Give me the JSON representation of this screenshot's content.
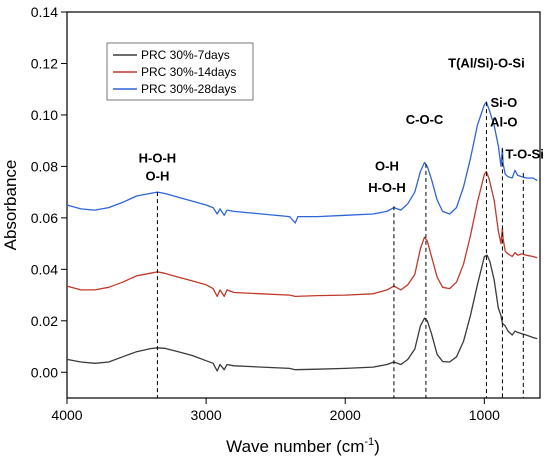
{
  "chart_data": {
    "type": "line",
    "xlabel_main": "Wave number (cm",
    "xlabel_sup": "-1",
    "xlabel_end": ")",
    "ylabel": "Absorbance",
    "xlim": [
      4000,
      600
    ],
    "ylim": [
      -0.01,
      0.14
    ],
    "x_reversed": true,
    "x_ticks": [
      4000,
      3000,
      2000,
      1000
    ],
    "y_ticks": [
      0.0,
      0.02,
      0.04,
      0.06,
      0.08,
      0.1,
      0.12,
      0.14
    ],
    "y_tick_labels": [
      "0.00",
      "0.02",
      "0.04",
      "0.06",
      "0.08",
      "0.10",
      "0.12",
      "0.14"
    ],
    "grid": false,
    "legend_position": "top-left",
    "series": [
      {
        "name": "PRC 30%-7days",
        "color": "#3a3a3a",
        "points": [
          [
            4000,
            0.005
          ],
          [
            3900,
            0.004
          ],
          [
            3800,
            0.0035
          ],
          [
            3700,
            0.004
          ],
          [
            3600,
            0.006
          ],
          [
            3500,
            0.008
          ],
          [
            3400,
            0.0092
          ],
          [
            3350,
            0.0095
          ],
          [
            3300,
            0.0093
          ],
          [
            3200,
            0.008
          ],
          [
            3100,
            0.0065
          ],
          [
            3000,
            0.0045
          ],
          [
            2950,
            0.0035
          ],
          [
            2920,
            0.0005
          ],
          [
            2900,
            0.003
          ],
          [
            2870,
            0.001
          ],
          [
            2850,
            0.003
          ],
          [
            2800,
            0.0025
          ],
          [
            2600,
            0.002
          ],
          [
            2400,
            0.0015
          ],
          [
            2360,
            0.001
          ],
          [
            2200,
            0.0012
          ],
          [
            2000,
            0.0015
          ],
          [
            1800,
            0.002
          ],
          [
            1700,
            0.003
          ],
          [
            1650,
            0.004
          ],
          [
            1600,
            0.003
          ],
          [
            1550,
            0.005
          ],
          [
            1500,
            0.009
          ],
          [
            1460,
            0.018
          ],
          [
            1430,
            0.021
          ],
          [
            1410,
            0.02
          ],
          [
            1380,
            0.015
          ],
          [
            1340,
            0.007
          ],
          [
            1300,
            0.0042
          ],
          [
            1250,
            0.004
          ],
          [
            1200,
            0.006
          ],
          [
            1150,
            0.012
          ],
          [
            1100,
            0.022
          ],
          [
            1050,
            0.034
          ],
          [
            1000,
            0.045
          ],
          [
            980,
            0.0455
          ],
          [
            960,
            0.043
          ],
          [
            930,
            0.036
          ],
          [
            900,
            0.025
          ],
          [
            880,
            0.022
          ],
          [
            870,
            0.019
          ],
          [
            850,
            0.018
          ],
          [
            830,
            0.016
          ],
          [
            800,
            0.0145
          ],
          [
            780,
            0.016
          ],
          [
            760,
            0.0155
          ],
          [
            730,
            0.015
          ],
          [
            700,
            0.0145
          ],
          [
            650,
            0.0135
          ],
          [
            620,
            0.013
          ]
        ]
      },
      {
        "name": "PRC 30%-14days",
        "color": "#c0392b",
        "points": [
          [
            4000,
            0.0335
          ],
          [
            3900,
            0.032
          ],
          [
            3800,
            0.032
          ],
          [
            3700,
            0.033
          ],
          [
            3600,
            0.035
          ],
          [
            3500,
            0.0375
          ],
          [
            3400,
            0.0385
          ],
          [
            3350,
            0.039
          ],
          [
            3300,
            0.0385
          ],
          [
            3200,
            0.037
          ],
          [
            3100,
            0.0355
          ],
          [
            3000,
            0.034
          ],
          [
            2950,
            0.0325
          ],
          [
            2920,
            0.0295
          ],
          [
            2900,
            0.032
          ],
          [
            2870,
            0.0295
          ],
          [
            2850,
            0.032
          ],
          [
            2800,
            0.031
          ],
          [
            2600,
            0.0305
          ],
          [
            2400,
            0.03
          ],
          [
            2360,
            0.0295
          ],
          [
            2200,
            0.0298
          ],
          [
            2000,
            0.03
          ],
          [
            1800,
            0.0305
          ],
          [
            1700,
            0.032
          ],
          [
            1650,
            0.0335
          ],
          [
            1600,
            0.032
          ],
          [
            1550,
            0.034
          ],
          [
            1500,
            0.038
          ],
          [
            1460,
            0.048
          ],
          [
            1430,
            0.0525
          ],
          [
            1410,
            0.051
          ],
          [
            1380,
            0.045
          ],
          [
            1340,
            0.037
          ],
          [
            1300,
            0.033
          ],
          [
            1250,
            0.0325
          ],
          [
            1200,
            0.035
          ],
          [
            1150,
            0.042
          ],
          [
            1100,
            0.053
          ],
          [
            1050,
            0.066
          ],
          [
            1000,
            0.077
          ],
          [
            985,
            0.078
          ],
          [
            965,
            0.075
          ],
          [
            930,
            0.067
          ],
          [
            900,
            0.055
          ],
          [
            880,
            0.05
          ],
          [
            870,
            0.056
          ],
          [
            865,
            0.052
          ],
          [
            850,
            0.047
          ],
          [
            830,
            0.046
          ],
          [
            800,
            0.045
          ],
          [
            780,
            0.0465
          ],
          [
            760,
            0.0455
          ],
          [
            730,
            0.046
          ],
          [
            700,
            0.0455
          ],
          [
            650,
            0.045
          ],
          [
            620,
            0.0445
          ]
        ]
      },
      {
        "name": "PRC 30%-28days",
        "color": "#2f64d6",
        "points": [
          [
            4000,
            0.065
          ],
          [
            3900,
            0.0635
          ],
          [
            3800,
            0.063
          ],
          [
            3700,
            0.064
          ],
          [
            3600,
            0.066
          ],
          [
            3500,
            0.0685
          ],
          [
            3400,
            0.0695
          ],
          [
            3350,
            0.07
          ],
          [
            3300,
            0.0695
          ],
          [
            3200,
            0.068
          ],
          [
            3100,
            0.0665
          ],
          [
            3000,
            0.065
          ],
          [
            2950,
            0.064
          ],
          [
            2920,
            0.0615
          ],
          [
            2900,
            0.0635
          ],
          [
            2870,
            0.061
          ],
          [
            2850,
            0.063
          ],
          [
            2800,
            0.0625
          ],
          [
            2600,
            0.0615
          ],
          [
            2400,
            0.0605
          ],
          [
            2360,
            0.058
          ],
          [
            2340,
            0.0605
          ],
          [
            2200,
            0.0605
          ],
          [
            2000,
            0.061
          ],
          [
            1800,
            0.0615
          ],
          [
            1700,
            0.0625
          ],
          [
            1650,
            0.064
          ],
          [
            1600,
            0.063
          ],
          [
            1550,
            0.0655
          ],
          [
            1500,
            0.07
          ],
          [
            1460,
            0.078
          ],
          [
            1430,
            0.0815
          ],
          [
            1410,
            0.08
          ],
          [
            1380,
            0.075
          ],
          [
            1340,
            0.067
          ],
          [
            1300,
            0.0625
          ],
          [
            1250,
            0.0615
          ],
          [
            1200,
            0.064
          ],
          [
            1150,
            0.072
          ],
          [
            1100,
            0.083
          ],
          [
            1050,
            0.096
          ],
          [
            1000,
            0.104
          ],
          [
            985,
            0.105
          ],
          [
            965,
            0.102
          ],
          [
            930,
            0.096
          ],
          [
            900,
            0.088
          ],
          [
            880,
            0.08
          ],
          [
            870,
            0.087
          ],
          [
            865,
            0.081
          ],
          [
            850,
            0.077
          ],
          [
            830,
            0.076
          ],
          [
            800,
            0.0755
          ],
          [
            780,
            0.0785
          ],
          [
            760,
            0.0765
          ],
          [
            730,
            0.076
          ],
          [
            700,
            0.0755
          ],
          [
            650,
            0.0755
          ],
          [
            620,
            0.0745
          ]
        ]
      }
    ],
    "annotations": [
      {
        "text": "H-O-H",
        "x": 3350,
        "y": 0.0815
      },
      {
        "text": "O-H",
        "x": 3350,
        "y": 0.0745
      },
      {
        "text": "O-H",
        "x": 1700,
        "y": 0.0785
      },
      {
        "text": "H-O-H",
        "x": 1700,
        "y": 0.07
      },
      {
        "text": "C-O-C",
        "x": 1430,
        "y": 0.0965
      },
      {
        "text": "T(Al/Si)-O-Si",
        "x": 985,
        "y": 0.1185
      },
      {
        "text": "Si-O",
        "x": 860,
        "y": 0.103
      },
      {
        "text": "Al-O",
        "x": 860,
        "y": 0.0955
      },
      {
        "text": "T-O-Si",
        "x": 710,
        "y": 0.083
      }
    ],
    "dashed_lines": [
      {
        "x": 3350,
        "y_top": 0.07,
        "y_bottom": -0.01
      },
      {
        "x": 1650,
        "y_top": 0.0645,
        "y_bottom": -0.01
      },
      {
        "x": 1420,
        "y_top": 0.081,
        "y_bottom": -0.01
      },
      {
        "x": 985,
        "y_top": 0.105,
        "y_bottom": -0.01
      },
      {
        "x": 870,
        "y_top": 0.087,
        "y_bottom": -0.01
      },
      {
        "x": 720,
        "y_top": 0.0775,
        "y_bottom": -0.01
      }
    ]
  }
}
